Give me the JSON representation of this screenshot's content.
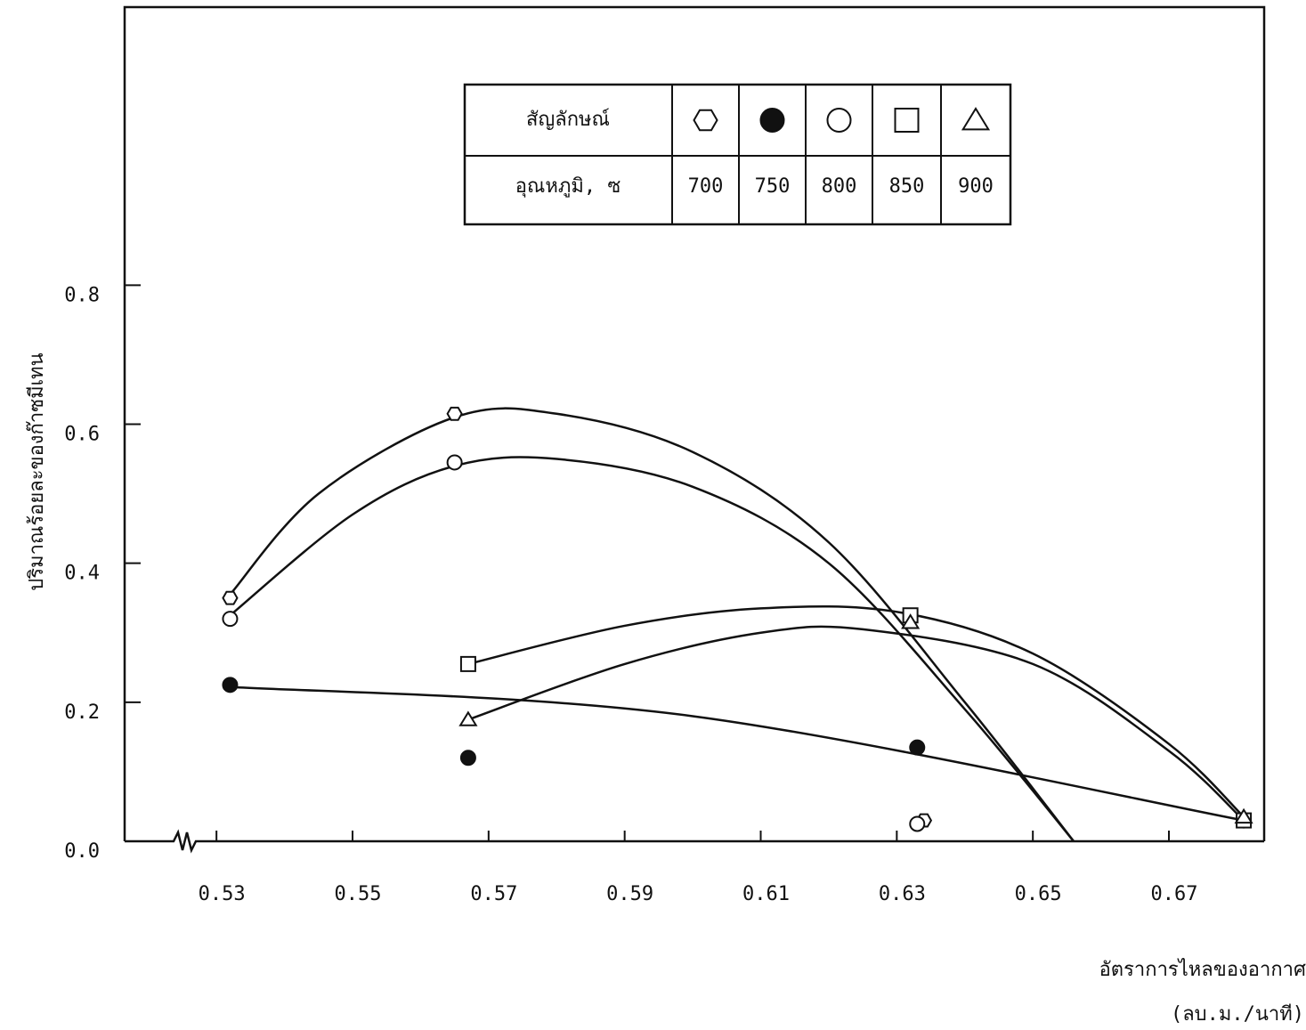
{
  "chart_data": {
    "type": "scatter",
    "x_label": "อัตราการไหลของอากาศ",
    "x_unit": "(ลบ.ม./นาที)",
    "y_label": "ปริมาณร้อยละของก๊าซมีเทน",
    "legend_symbol_label": "สัญลักษณ์",
    "legend_temp_label": "อุณหภูมิ, ซ",
    "xlim": [
      0.5165,
      0.684
    ],
    "ylim": [
      0,
      1.2
    ],
    "xticks": [
      0.53,
      0.55,
      0.57,
      0.59,
      0.61,
      0.63,
      0.65,
      0.67
    ],
    "yticks": [
      {
        "value": 0,
        "label": "0.0"
      },
      0.2,
      0.4,
      0.6,
      0.8
    ],
    "series": [
      {
        "name": "700",
        "marker": "hexagon",
        "color": "#111111",
        "x": [
          0.532,
          0.565,
          0.634
        ],
        "values": [
          0.35,
          0.615,
          0.03
        ]
      },
      {
        "name": "750",
        "marker": "filled-circle",
        "color": "#111111",
        "x": [
          0.532,
          0.567,
          0.633,
          0.681
        ],
        "values": [
          0.225,
          0.12,
          0.135,
          0.03
        ]
      },
      {
        "name": "800",
        "marker": "circle",
        "color": "#111111",
        "x": [
          0.532,
          0.565,
          0.633
        ],
        "values": [
          0.32,
          0.545,
          0.025
        ]
      },
      {
        "name": "850",
        "marker": "square",
        "color": "#111111",
        "x": [
          0.567,
          0.632,
          0.681
        ],
        "values": [
          0.255,
          0.325,
          0.03
        ]
      },
      {
        "name": "900",
        "marker": "triangle",
        "color": "#111111",
        "x": [
          0.567,
          0.632,
          0.681
        ],
        "values": [
          0.175,
          0.315,
          0.035
        ]
      }
    ],
    "curves": [
      {
        "x": [
          0.532,
          0.545,
          0.565,
          0.58,
          0.6,
          0.62,
          0.64,
          0.656
        ],
        "values": [
          0.355,
          0.5,
          0.61,
          0.615,
          0.56,
          0.43,
          0.2,
          0.0
        ]
      },
      {
        "x": [
          0.532,
          0.55,
          0.565,
          0.58,
          0.6,
          0.62,
          0.64,
          0.656
        ],
        "values": [
          0.325,
          0.47,
          0.54,
          0.55,
          0.51,
          0.4,
          0.19,
          0.0
        ]
      },
      {
        "x": [
          0.567,
          0.59,
          0.61,
          0.63,
          0.65,
          0.67,
          0.681
        ],
        "values": [
          0.255,
          0.31,
          0.335,
          0.33,
          0.27,
          0.14,
          0.035
        ]
      },
      {
        "x": [
          0.567,
          0.59,
          0.61,
          0.625,
          0.65,
          0.67,
          0.681
        ],
        "values": [
          0.175,
          0.255,
          0.3,
          0.305,
          0.255,
          0.13,
          0.03
        ]
      },
      {
        "x": [
          0.532,
          0.6,
          0.681
        ],
        "values": [
          0.222,
          0.18,
          0.03
        ]
      }
    ]
  }
}
